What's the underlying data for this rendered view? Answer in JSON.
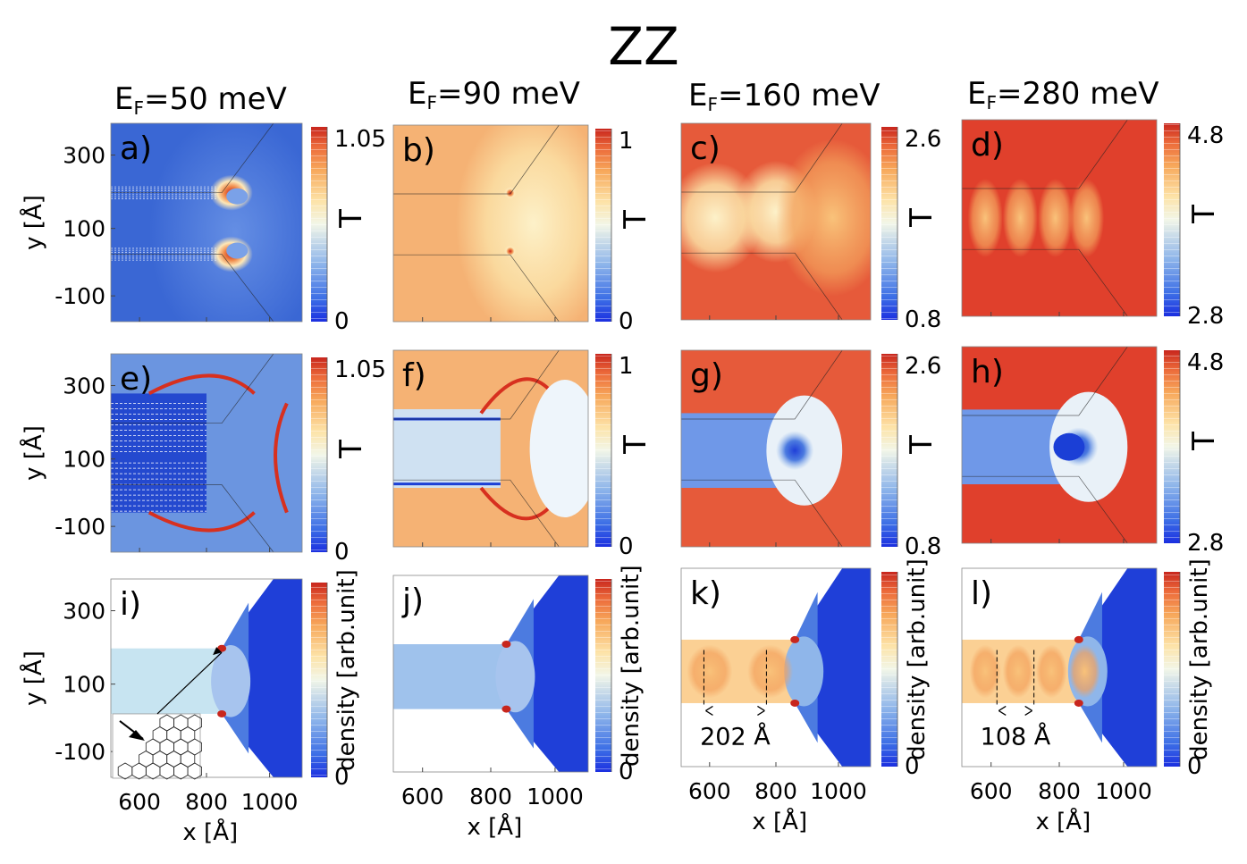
{
  "figure": {
    "title": "ZZ",
    "columns": [
      {
        "prefix": "E",
        "sub": "F",
        "value": "=50 meV"
      },
      {
        "prefix": "E",
        "sub": "F",
        "value": "=90 meV"
      },
      {
        "prefix": "E",
        "sub": "F",
        "value": "=160 meV"
      },
      {
        "prefix": "E",
        "sub": "F",
        "value": "=280 meV"
      }
    ],
    "colors": {
      "low": "#1b3fd6",
      "mid": "#fbfbe6",
      "high": "#c8261d"
    }
  },
  "chart_data": [
    {
      "panel": "a)",
      "type": "heatmap",
      "quantity": "T",
      "cbar": {
        "min": "0",
        "max": "1.05"
      },
      "ylabel": "y [Å]",
      "yticks": [
        "300",
        "100",
        "-100"
      ],
      "xticks": []
    },
    {
      "panel": "b)",
      "type": "heatmap",
      "quantity": "T",
      "cbar": {
        "min": "0",
        "max": "1"
      },
      "ylabel": "",
      "yticks": [],
      "xticks": []
    },
    {
      "panel": "c)",
      "type": "heatmap",
      "quantity": "T",
      "cbar": {
        "min": "0.8",
        "max": "2.6"
      },
      "ylabel": "",
      "yticks": [],
      "xticks": []
    },
    {
      "panel": "d)",
      "type": "heatmap",
      "quantity": "T",
      "cbar": {
        "min": "2.8",
        "max": "4.8"
      },
      "ylabel": "",
      "yticks": [],
      "xticks": []
    },
    {
      "panel": "e)",
      "type": "heatmap",
      "quantity": "T",
      "cbar": {
        "min": "0",
        "max": "1.05"
      },
      "ylabel": "y [Å]",
      "yticks": [
        "300",
        "100",
        "-100"
      ],
      "xticks": []
    },
    {
      "panel": "f)",
      "type": "heatmap",
      "quantity": "T",
      "cbar": {
        "min": "0",
        "max": "1"
      },
      "ylabel": "",
      "yticks": [],
      "xticks": []
    },
    {
      "panel": "g)",
      "type": "heatmap",
      "quantity": "T",
      "cbar": {
        "min": "0.8",
        "max": "2.6"
      },
      "ylabel": "",
      "yticks": [],
      "xticks": []
    },
    {
      "panel": "h)",
      "type": "heatmap",
      "quantity": "T",
      "cbar": {
        "min": "2.8",
        "max": "4.8"
      },
      "ylabel": "",
      "yticks": [],
      "xticks": []
    },
    {
      "panel": "i)",
      "type": "heatmap",
      "quantity": "density [arb.unit]",
      "cbar": {
        "min": "0",
        "max": ""
      },
      "ylabel": "y [Å]",
      "yticks": [
        "300",
        "100",
        "-100"
      ],
      "xlabel": "x [Å]",
      "xticks": [
        "600",
        "800",
        "1000"
      ]
    },
    {
      "panel": "j)",
      "type": "heatmap",
      "quantity": "density [arb.unit]",
      "cbar": {
        "min": "0",
        "max": ""
      },
      "ylabel": "",
      "yticks": [],
      "xlabel": "x [Å]",
      "xticks": [
        "600",
        "800",
        "1000"
      ]
    },
    {
      "panel": "k)",
      "type": "heatmap",
      "quantity": "density [arb.unit]",
      "cbar": {
        "min": "0",
        "max": ""
      },
      "ylabel": "",
      "yticks": [],
      "xlabel": "x [Å]",
      "xticks": [
        "600",
        "800",
        "1000"
      ],
      "annotation": "202 Å"
    },
    {
      "panel": "l)",
      "type": "heatmap",
      "quantity": "density [arb.unit]",
      "cbar": {
        "min": "0",
        "max": ""
      },
      "ylabel": "",
      "yticks": [],
      "xlabel": "x [Å]",
      "xticks": [
        "600",
        "800",
        "1000"
      ],
      "annotation": "108 Å"
    }
  ]
}
